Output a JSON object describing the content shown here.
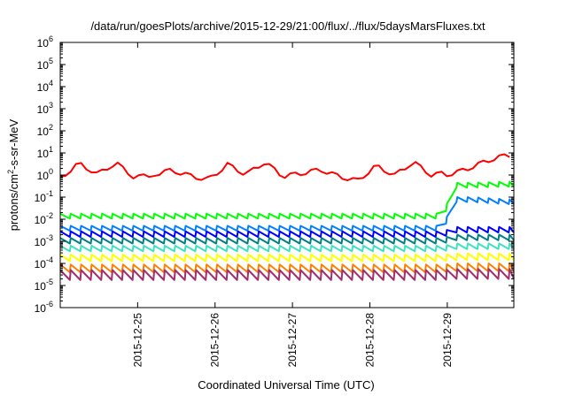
{
  "chart_data": {
    "type": "line",
    "title": "/data/run/goesPlots/archive/2015-12-29/21:00/flux/../flux/5daysMarsFluxes.txt",
    "xlabel": "Coordinated Universal Time (UTC)",
    "ylabel": {
      "pre": "protons/cm",
      "sup": "2",
      "post": "-s-sr-MeV"
    },
    "yscale": "log",
    "ylim_exp": [
      -6,
      6
    ],
    "y_ticks": [
      {
        "base": "10",
        "exp": "6"
      },
      {
        "base": "10",
        "exp": "5"
      },
      {
        "base": "10",
        "exp": "4"
      },
      {
        "base": "10",
        "exp": "3"
      },
      {
        "base": "10",
        "exp": "2"
      },
      {
        "base": "10",
        "exp": "1"
      },
      {
        "base": "10",
        "exp": "0"
      },
      {
        "base": "10",
        "exp": "-1"
      },
      {
        "base": "10",
        "exp": "-2"
      },
      {
        "base": "10",
        "exp": "-3"
      },
      {
        "base": "10",
        "exp": "-4"
      },
      {
        "base": "10",
        "exp": "-5"
      },
      {
        "base": "10",
        "exp": "-6"
      }
    ],
    "x_tick_labels": [
      "2015-12-25",
      "2015-12-26",
      "2015-12-27",
      "2015-12-28",
      "2015-12-29"
    ],
    "xlim_days": [
      0.0,
      5.86
    ],
    "x_tick_days": [
      1.0,
      2.0,
      3.0,
      4.0,
      5.0
    ],
    "grid": false,
    "legend": "none",
    "series": [
      {
        "color": "#ff0000",
        "pattern": "solar",
        "base_exp": 0.0,
        "amp": 0.55,
        "rise_exp": 0.9
      },
      {
        "color": "#00ff00",
        "pattern": "saw",
        "base_exp": -1.75,
        "amp": 0.22,
        "rise_exp": -0.35,
        "step_exp": -0.3
      },
      {
        "color": "#0080ff",
        "pattern": "saw",
        "base_exp": -2.3,
        "amp": 0.22,
        "rise_exp": -1.0,
        "step_exp": -1.1
      },
      {
        "color": "#0000ff",
        "pattern": "saw",
        "base_exp": -2.55,
        "amp": 0.25,
        "rise_exp": -2.35
      },
      {
        "color": "#008080",
        "pattern": "saw",
        "base_exp": -2.85,
        "amp": 0.25,
        "rise_exp": -2.7
      },
      {
        "color": "#40e0c0",
        "pattern": "saw",
        "base_exp": -3.2,
        "amp": 0.25,
        "rise_exp": -3.1
      },
      {
        "color": "#ffff00",
        "pattern": "saw",
        "base_exp": -3.6,
        "amp": 0.3,
        "rise_exp": -3.55
      },
      {
        "color": "#ff8000",
        "pattern": "saw",
        "base_exp": -4.05,
        "amp": 0.35,
        "rise_exp": -4.0
      },
      {
        "color": "#a0306e",
        "pattern": "saw",
        "base_exp": -4.3,
        "amp": 0.45,
        "rise_exp": -4.25
      }
    ]
  }
}
